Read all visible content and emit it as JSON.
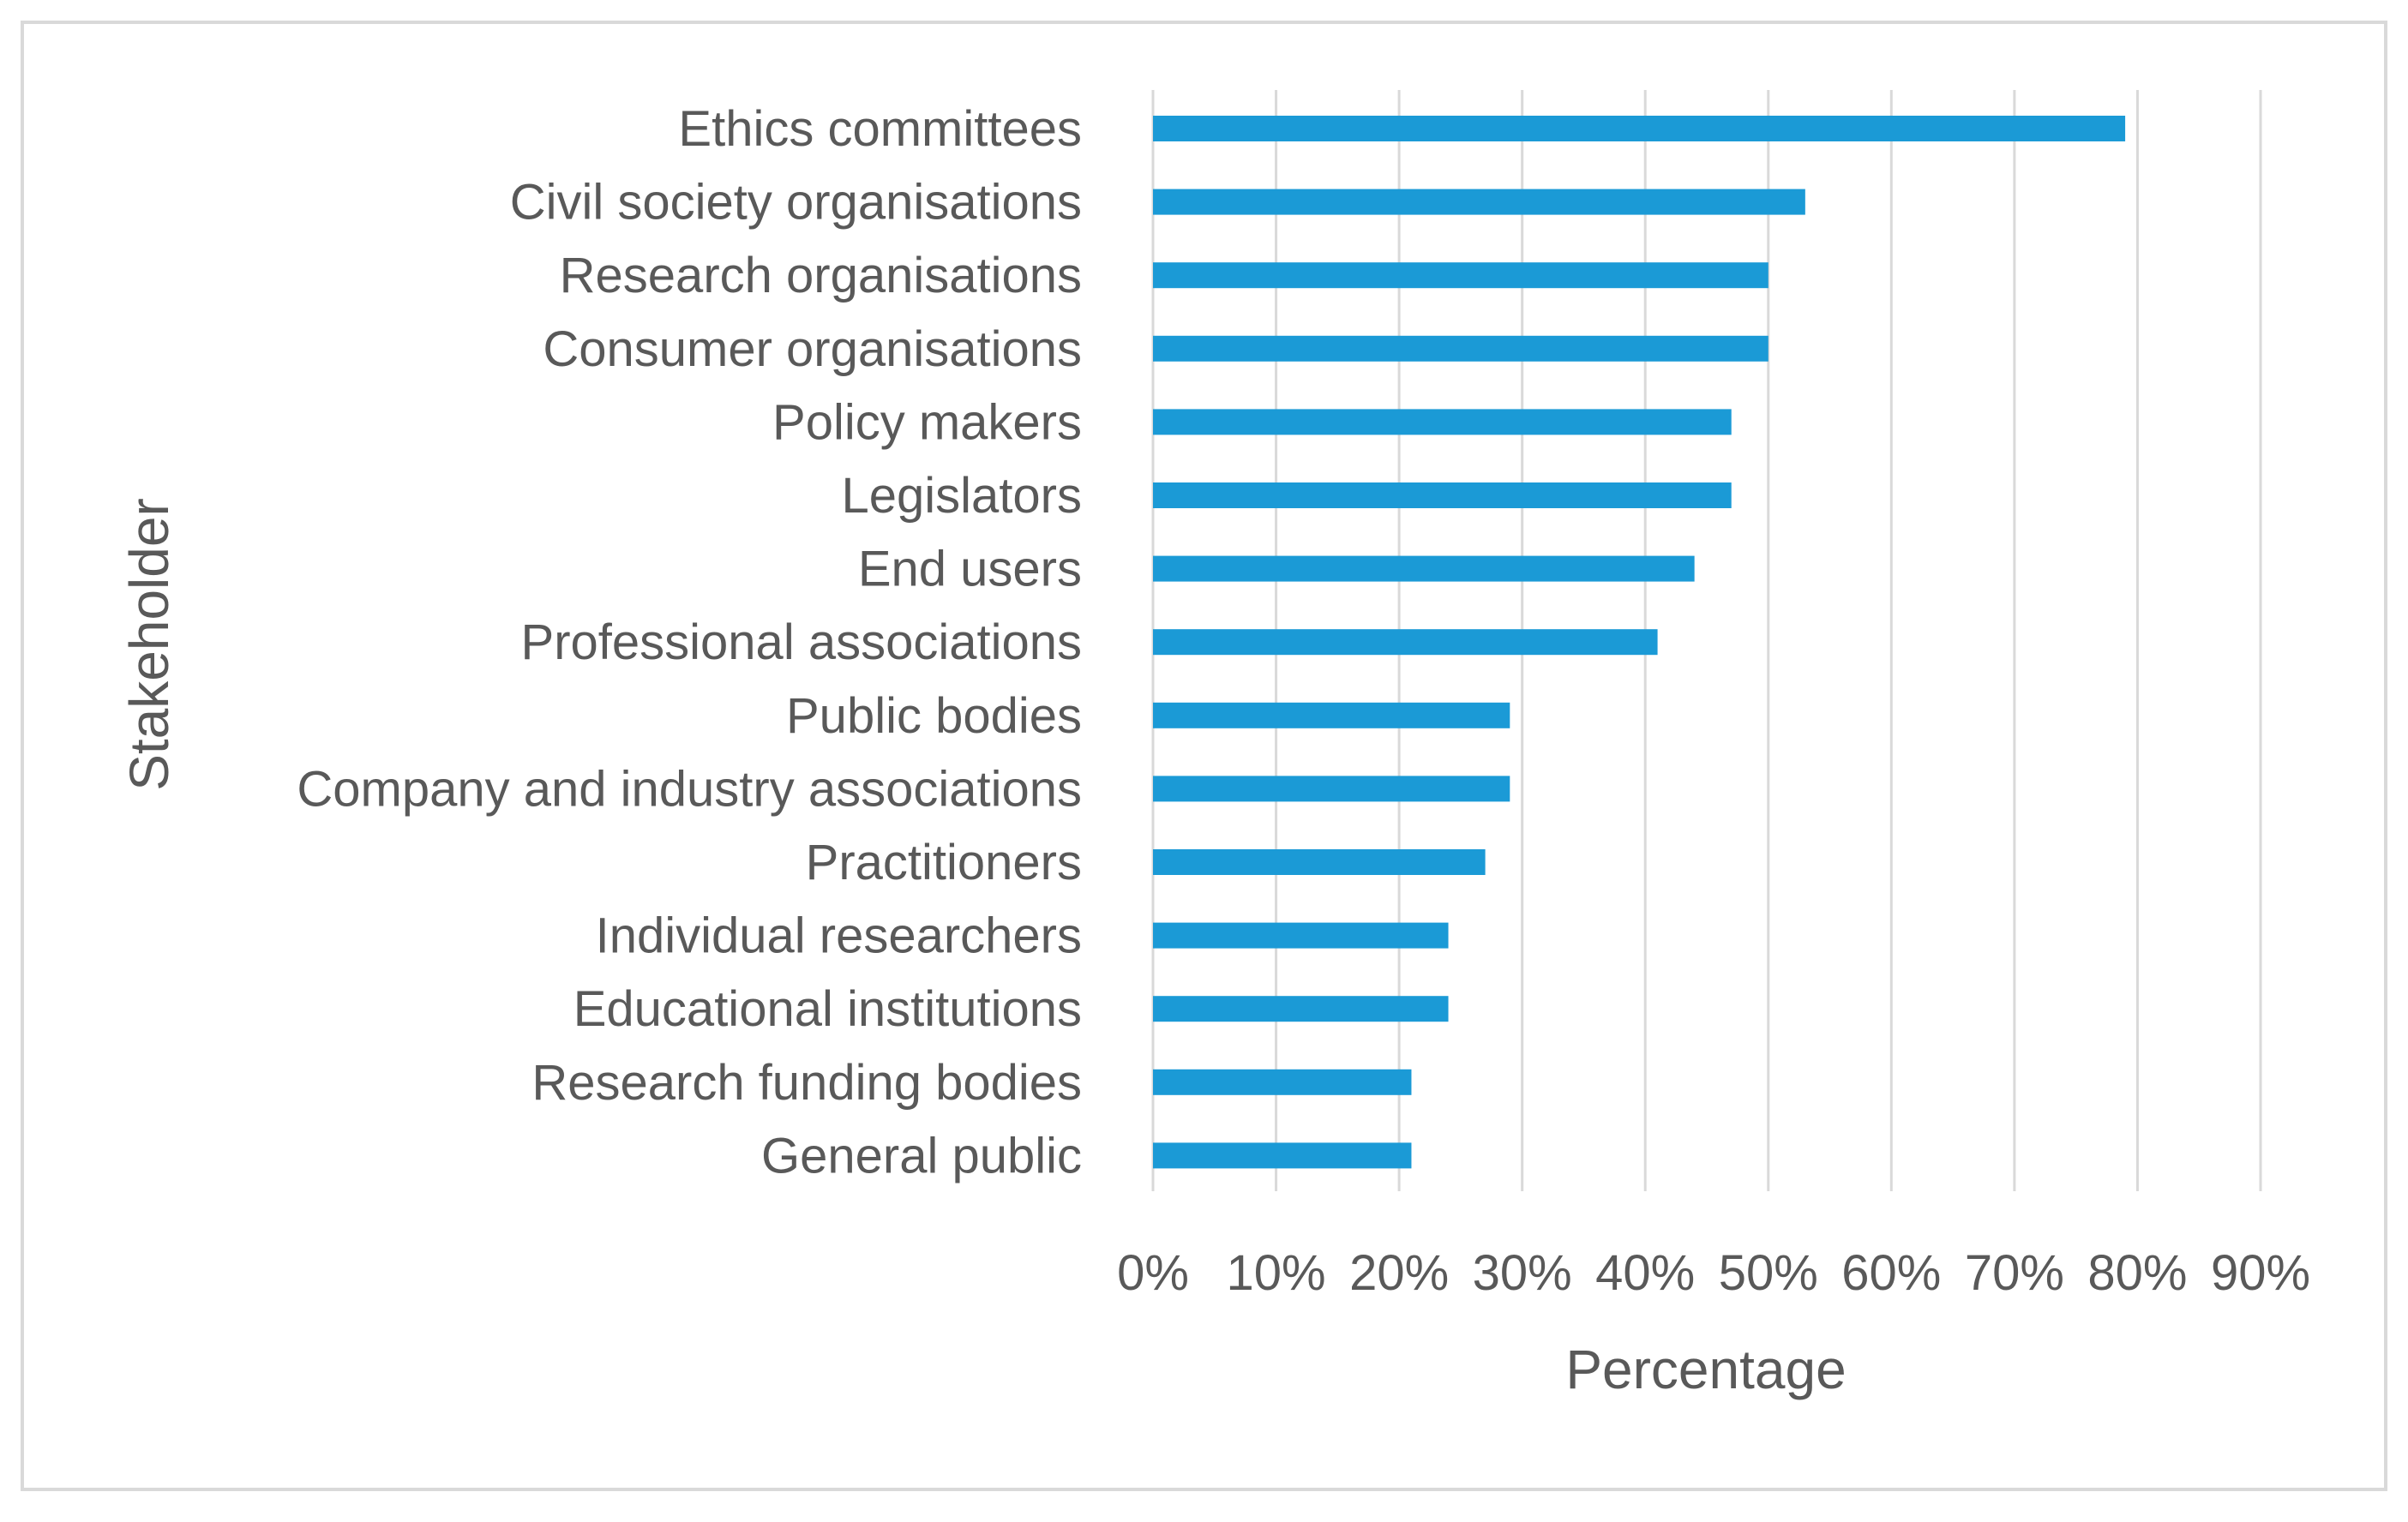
{
  "chart_data": {
    "type": "bar",
    "orientation": "horizontal",
    "title": "",
    "xlabel": "Percentage",
    "ylabel": "Stakeholder",
    "categories": [
      "Ethics committees",
      "Civil society organisations",
      "Research organisations",
      "Consumer organisations",
      "Policy makers",
      "Legislators",
      "End users",
      "Professional associations",
      "Public bodies",
      "Company and industry associations",
      "Practitioners",
      "Individual researchers",
      "Educational institutions",
      "Research funding bodies",
      "General public"
    ],
    "values": [
      79,
      53,
      50,
      50,
      47,
      47,
      44,
      41,
      29,
      29,
      27,
      24,
      24,
      21,
      21
    ],
    "xlim": [
      0,
      90
    ],
    "ticks": [
      "0%",
      "10%",
      "20%",
      "30%",
      "40%",
      "50%",
      "60%",
      "70%",
      "80%",
      "90%"
    ],
    "tick_values": [
      0,
      10,
      20,
      30,
      40,
      50,
      60,
      70,
      80,
      90
    ],
    "grid": true,
    "bar_color": "#1b9ad6",
    "gridline_color": "#d9d9d9",
    "text_color": "#595959"
  }
}
